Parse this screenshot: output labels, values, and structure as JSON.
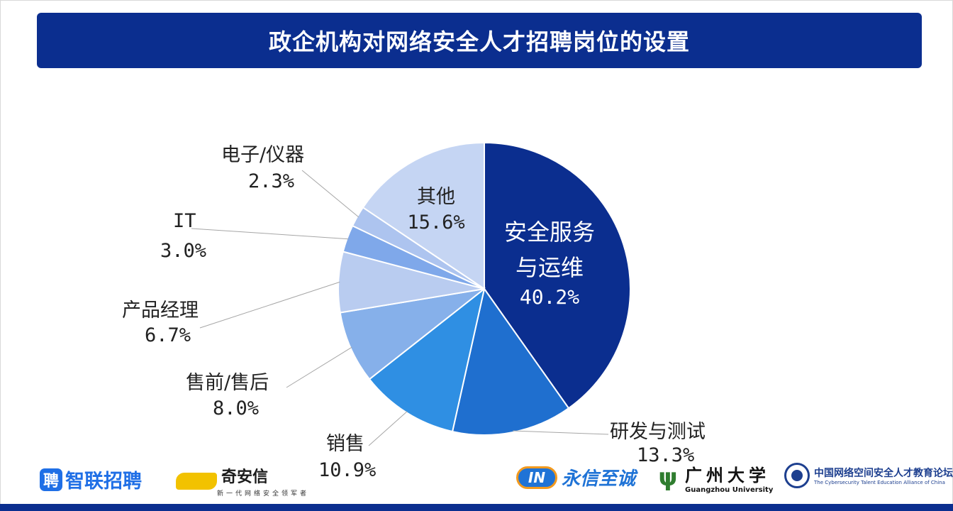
{
  "title": "政企机构对网络安全人才招聘岗位的设置",
  "chart_data": {
    "type": "pie",
    "title": "政企机构对网络安全人才招聘岗位的设置",
    "start_angle_deg": 0,
    "direction": "clockwise",
    "slices": [
      {
        "label": "安全服务与运维",
        "display_label": [
          "安全服务",
          "与运维"
        ],
        "value": 40.2,
        "value_text": "40.2%",
        "color": "#0b2e8f"
      },
      {
        "label": "研发与测试",
        "display_label": [
          "研发与测试"
        ],
        "value": 13.3,
        "value_text": "13.3%",
        "color": "#1f6fcf"
      },
      {
        "label": "销售",
        "display_label": [
          "销售"
        ],
        "value": 10.9,
        "value_text": "10.9%",
        "color": "#2f8fe3"
      },
      {
        "label": "售前/售后",
        "display_label": [
          "售前/售后"
        ],
        "value": 8.0,
        "value_text": "8.0%",
        "color": "#86b0ea"
      },
      {
        "label": "产品经理",
        "display_label": [
          "产品经理"
        ],
        "value": 6.7,
        "value_text": "6.7%",
        "color": "#b9ccf0"
      },
      {
        "label": "IT",
        "display_label": [
          "IT"
        ],
        "value": 3.0,
        "value_text": "3.0%",
        "color": "#7fa8ea"
      },
      {
        "label": "电子/仪器",
        "display_label": [
          "电子/仪器"
        ],
        "value": 2.3,
        "value_text": "2.3%",
        "color": "#adc4ef"
      },
      {
        "label": "其他",
        "display_label": [
          "其他"
        ],
        "value": 15.6,
        "value_text": "15.6%",
        "color": "#c5d5f3"
      }
    ],
    "legend": "none",
    "label_style": "outside with leader lines; first and last slices labelled inside"
  },
  "logos": {
    "zhaopin": {
      "badge": "聘",
      "text": "智联招聘"
    },
    "qianxin": {
      "text": "奇安信",
      "sub": "新一代网络安全领军者"
    },
    "yongxin": {
      "badge": "IN",
      "text": "永信至诚"
    },
    "gzhu": {
      "text": "广州大学",
      "sub": "Guangzhou University"
    },
    "csa": {
      "text": "中国网络空间安全人才教育论坛",
      "sub": "The Cybersecurity Talent Education Alliance of China"
    }
  },
  "colors": {
    "brand_navy": "#0b2e8f",
    "background": "#ffffff"
  }
}
